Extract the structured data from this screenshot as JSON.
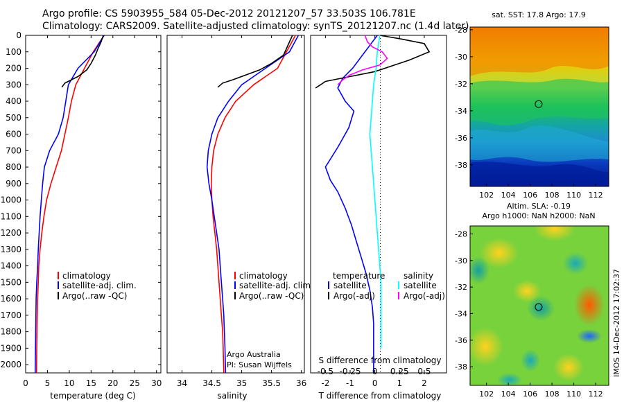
{
  "header": {
    "line1": "Argo profile: CS 5903955_584 05-Dec-2012 20121207_57 33.503S 106.781E",
    "line2": "Climatology: CARS2009. Satellite-adjusted climatology: synTS_20121207.nc (1.4d later)"
  },
  "vertical_label": "IMOS 14-Dec-2012 17:02:37",
  "chart_data": [
    {
      "type": "line",
      "xlabel": "temperature (deg C)",
      "xlim": [
        0,
        31
      ],
      "ylim": [
        0,
        2050
      ],
      "y_reversed": true,
      "xticks": [
        0,
        5,
        10,
        15,
        20,
        25,
        30
      ],
      "yticks": [
        0,
        100,
        200,
        300,
        400,
        500,
        600,
        700,
        800,
        900,
        1000,
        1100,
        1200,
        1300,
        1400,
        1500,
        1600,
        1700,
        1800,
        1900,
        2000
      ],
      "legend": {
        "position": "bottom-center",
        "entries": [
          {
            "label": "climatology",
            "color": "#ff0000"
          },
          {
            "label": "satellite-adj. clim.",
            "color": "#0000ff"
          },
          {
            "label": "Argo(..raw -QC)",
            "color": "#000000"
          }
        ]
      },
      "series": [
        {
          "name": "climatology",
          "color": "#ff0000",
          "x": [
            18,
            15.5,
            13.5,
            11.5,
            10.5,
            9.8,
            9.0,
            8.2,
            7.0,
            5.8,
            4.8,
            4.2,
            3.7,
            3.3,
            3.0,
            2.9,
            2.75,
            2.65,
            2.6,
            2.55,
            2.5
          ],
          "y": [
            0,
            100,
            200,
            300,
            400,
            500,
            600,
            700,
            800,
            900,
            1000,
            1100,
            1200,
            1300,
            1400,
            1500,
            1600,
            1700,
            1800,
            1900,
            2050
          ]
        },
        {
          "name": "satellite-adj. clim.",
          "color": "#0000ff",
          "x": [
            18,
            15.7,
            12.0,
            9.8,
            9.2,
            8.6,
            7.5,
            5.5,
            4.3,
            3.9,
            3.6,
            3.3,
            3.1,
            2.9,
            2.75,
            2.55,
            2.4,
            2.35,
            2.3,
            2.25,
            2.2
          ],
          "y": [
            0,
            100,
            200,
            300,
            400,
            500,
            600,
            700,
            800,
            900,
            1000,
            1100,
            1200,
            1300,
            1400,
            1500,
            1600,
            1700,
            1800,
            1900,
            2050
          ]
        },
        {
          "name": "Argo(..raw -QC)",
          "color": "#000000",
          "x": [
            17.8,
            17.3,
            16.6,
            16.0,
            15.0,
            14.0,
            12.0,
            10.5,
            9.0,
            8.3
          ],
          "y": [
            0,
            40,
            80,
            120,
            170,
            210,
            250,
            270,
            290,
            315
          ]
        }
      ]
    },
    {
      "type": "line",
      "xlabel": "salinity",
      "xlim": [
        33.75,
        36.05
      ],
      "ylim": [
        0,
        2050
      ],
      "y_reversed": true,
      "xticks": [
        34,
        34.5,
        35,
        35.5,
        36
      ],
      "legend": {
        "position": "bottom-center",
        "entries": [
          {
            "label": "climatology",
            "color": "#ff0000"
          },
          {
            "label": "satellite-adj. clim.",
            "color": "#0000ff"
          },
          {
            "label": "Argo(..raw -QC)",
            "color": "#000000"
          }
        ]
      },
      "annotation": [
        "Argo Australia",
        "PI: Susan Wijffels"
      ],
      "series": [
        {
          "name": "climatology",
          "color": "#ff0000",
          "x": [
            35.9,
            35.75,
            35.6,
            35.2,
            34.9,
            34.72,
            34.6,
            34.53,
            34.5,
            34.49,
            34.5,
            34.52,
            34.55,
            34.58,
            34.6,
            34.62,
            34.64,
            34.66,
            34.68,
            34.69,
            34.7
          ],
          "y": [
            0,
            100,
            200,
            300,
            400,
            500,
            600,
            700,
            800,
            900,
            1000,
            1100,
            1200,
            1300,
            1400,
            1500,
            1600,
            1700,
            1800,
            1900,
            2050
          ]
        },
        {
          "name": "satellite-adj. clim.",
          "color": "#0000ff",
          "x": [
            35.95,
            35.8,
            35.4,
            35.0,
            34.78,
            34.6,
            34.5,
            34.44,
            34.42,
            34.45,
            34.5,
            34.54,
            34.58,
            34.62,
            34.64,
            34.66,
            34.68,
            34.7,
            34.71,
            34.72,
            34.73
          ],
          "y": [
            0,
            100,
            200,
            300,
            400,
            500,
            600,
            700,
            800,
            900,
            1000,
            1100,
            1200,
            1300,
            1400,
            1500,
            1600,
            1700,
            1800,
            1900,
            2050
          ]
        },
        {
          "name": "Argo(..raw -QC)",
          "color": "#000000",
          "x": [
            35.85,
            35.8,
            35.75,
            35.7,
            35.5,
            35.3,
            35.0,
            34.85,
            34.68,
            34.6
          ],
          "y": [
            0,
            40,
            80,
            120,
            170,
            210,
            250,
            270,
            290,
            315
          ]
        }
      ]
    },
    {
      "type": "line",
      "xlabel_bottom": "T difference from climatology",
      "xlabel_top": "S difference from climatology",
      "xlim": [
        -2.6,
        2.9
      ],
      "ylim": [
        0,
        2050
      ],
      "y_reversed": true,
      "xticks_T": [
        -2,
        -1,
        0,
        1,
        2
      ],
      "xticks_S_labels": [
        "-0.5",
        "-0.25",
        "0",
        "0.25",
        "0.5"
      ],
      "xticks_S_positions": [
        -2,
        -1,
        0,
        1,
        2
      ],
      "legend": {
        "position": "bottom",
        "titles": [
          "temperature",
          "salinity"
        ],
        "entries": [
          {
            "label": "satellite",
            "color": "#0000ff"
          },
          {
            "label": "Argo(-adj)",
            "color": "#000000"
          },
          {
            "label": "satellite",
            "color": "#00ffff"
          },
          {
            "label": "Argo(-adj)",
            "color": "#ff00ff"
          }
        ]
      },
      "series": [
        {
          "name": "T satellite",
          "color": "#0000ff",
          "x": [
            0.1,
            -0.2,
            -0.5,
            -0.9,
            -1.3,
            -1.5,
            -1.2,
            -0.85,
            -1.05,
            -1.5,
            -2.0,
            -1.8,
            -1.5,
            -1.2,
            -0.95,
            -0.75,
            -0.55,
            -0.35,
            -0.2,
            -0.1,
            -0.05,
            -0.05,
            -0.05,
            -0.05
          ],
          "y": [
            0,
            60,
            120,
            200,
            260,
            320,
            400,
            460,
            560,
            680,
            800,
            880,
            950,
            1050,
            1150,
            1250,
            1350,
            1450,
            1550,
            1650,
            1750,
            1850,
            1950,
            2050
          ]
        },
        {
          "name": "T Argo(-adj)",
          "color": "#000000",
          "x": [
            0.2,
            1.0,
            2.0,
            2.2,
            1.4,
            0.8,
            0.0,
            -1.0,
            -2.0,
            -2.2,
            -2.4
          ],
          "y": [
            0,
            20,
            50,
            100,
            150,
            180,
            220,
            250,
            280,
            300,
            320
          ]
        },
        {
          "name": "S satellite",
          "color": "#00ffff",
          "x": [
            0.2,
            0.1,
            0.05,
            -0.05,
            -0.1,
            -0.15,
            -0.2,
            -0.15,
            -0.1,
            -0.05,
            0.0,
            0.05,
            0.1,
            0.15,
            0.2,
            0.25,
            0.25,
            0.25,
            0.25,
            0.25
          ],
          "y": [
            0,
            100,
            200,
            300,
            400,
            500,
            600,
            700,
            800,
            900,
            1000,
            1100,
            1200,
            1300,
            1400,
            1500,
            1600,
            1700,
            1800,
            1900
          ]
        },
        {
          "name": "S Argo(-adj)",
          "color": "#ff00ff",
          "x": [
            -0.4,
            -0.3,
            -0.1,
            0.3,
            0.5,
            0.2,
            -0.5,
            -1.0,
            -1.3,
            -1.5
          ],
          "y": [
            0,
            40,
            70,
            100,
            140,
            180,
            210,
            240,
            270,
            300
          ]
        }
      ]
    },
    {
      "type": "heatmap",
      "title": "sat. SST: 17.8 Argo: 17.9",
      "xticks": [
        102,
        104,
        106,
        108,
        110,
        112
      ],
      "yticks": [
        -28,
        -30,
        -32,
        -34,
        -36,
        -38
      ],
      "xlim": [
        100.5,
        113.2
      ],
      "ylim": [
        -39.6,
        -27.8
      ],
      "colormap": "jet",
      "marker": {
        "lon": 106.781,
        "lat": -33.503
      }
    },
    {
      "type": "heatmap",
      "title": [
        "Altim. SLA: -0.19",
        "Argo h1000: NaN h2000: NaN"
      ],
      "xticks": [
        102,
        104,
        106,
        108,
        110,
        112
      ],
      "yticks": [
        -28,
        -30,
        -32,
        -34,
        -36,
        -38
      ],
      "xlim": [
        100.5,
        113.2
      ],
      "ylim": [
        -39.4,
        -27.4
      ],
      "colormap": "jet",
      "marker": {
        "lon": 106.781,
        "lat": -33.503
      }
    }
  ]
}
